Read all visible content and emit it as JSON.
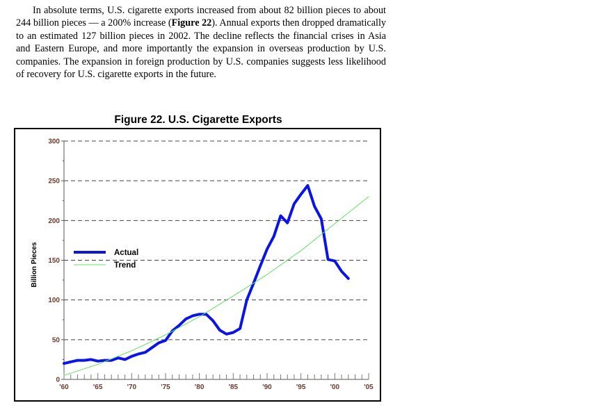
{
  "paragraph": {
    "part1": "In absolute terms, U.S. cigarette exports increased from about 82 billion pieces to about 244 billion pieces — a 200% increase (",
    "bold_ref": "Figure 22",
    "part2": "). Annual exports then dropped dramatically to an estimated 127 billion pieces in 2002. The decline reflects the financial crises in Asia and Eastern Europe, and more importantly the expansion in overseas production by U.S. companies. The expansion in foreign production by U.S. companies suggests less likelihood of recovery for U.S. cigarette exports in the future."
  },
  "colors": {
    "actual": "#0a14e6",
    "trend": "#5fe35f",
    "grid": "#444444",
    "tick_text": "#6b3a2a"
  },
  "chart_data": {
    "type": "line",
    "title": "Figure 22.  U.S. Cigarette Exports",
    "ylabel": "Billion Pieces",
    "xlabel": "",
    "xlim": [
      1960,
      2005
    ],
    "ylim": [
      0,
      300
    ],
    "x_tick_labels": [
      "'60",
      "'65",
      "'70",
      "'75",
      "'80",
      "'85",
      "'90",
      "'95",
      "'00",
      "'05"
    ],
    "x_ticks": [
      1960,
      1965,
      1970,
      1975,
      1980,
      1985,
      1990,
      1995,
      2000,
      2005
    ],
    "y_ticks": [
      0,
      50,
      100,
      150,
      200,
      250,
      300
    ],
    "y_tick_labels": [
      "0",
      "50",
      "100",
      "150",
      "200",
      "250",
      "300"
    ],
    "grid": "dashed horizontal",
    "legend": "left-middle",
    "series": [
      {
        "name": "Actual",
        "x": [
          1960,
          1961,
          1962,
          1963,
          1964,
          1965,
          1966,
          1967,
          1968,
          1969,
          1970,
          1971,
          1972,
          1973,
          1974,
          1975,
          1976,
          1977,
          1978,
          1979,
          1980,
          1981,
          1982,
          1983,
          1984,
          1985,
          1986,
          1987,
          1988,
          1989,
          1990,
          1991,
          1992,
          1993,
          1994,
          1995,
          1996,
          1997,
          1998,
          1999,
          2000,
          2001,
          2002
        ],
        "values": [
          20,
          22,
          24,
          24,
          25,
          23,
          24,
          24,
          27,
          25,
          29,
          32,
          34,
          40,
          46,
          49,
          61,
          68,
          76,
          80,
          82,
          82,
          74,
          62,
          57,
          59,
          64,
          100,
          121,
          143,
          164,
          180,
          206,
          197,
          221,
          233,
          244,
          218,
          202,
          151,
          149,
          136,
          127
        ]
      },
      {
        "name": "Trend",
        "x": [
          1960,
          1965,
          1970,
          1975,
          1980,
          1985,
          1990,
          1995,
          2000,
          2005
        ],
        "values": [
          5,
          19,
          36,
          56,
          79,
          105,
          132,
          162,
          196,
          230
        ]
      }
    ]
  }
}
